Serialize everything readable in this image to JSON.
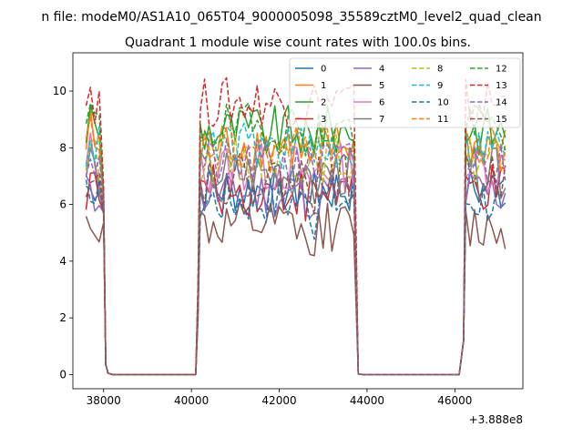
{
  "figure": {
    "suptitle": "n file: modeM0/AS1A10_065T04_9000005098_35589cztM0_level2_quad_clean",
    "title": "Quadrant 1 module wise count rates with 100.0s bins.",
    "x_offset_label": "+3.888e8"
  },
  "chart_data": {
    "type": "line",
    "title": "Quadrant 1 module wise count rates with 100.0s bins.",
    "xlabel": "",
    "ylabel": "",
    "x_offset": 388800000,
    "xlim": [
      37300,
      47550
    ],
    "ylim": [
      -0.5,
      11.35
    ],
    "xticks": [
      38000,
      40000,
      42000,
      44000,
      46000
    ],
    "yticks": [
      0,
      2,
      4,
      6,
      8,
      10
    ],
    "grid": false,
    "legend": {
      "position": "top-right",
      "columns": 4
    },
    "segments": [
      {
        "start": 37600,
        "end": 37950,
        "transition_end": 38100
      },
      {
        "start": 40150,
        "end": 43700,
        "transition_start": 40100,
        "transition_end": 43800
      },
      {
        "start": 46250,
        "end": 47200,
        "transition_start": 46100
      }
    ],
    "series": [
      {
        "name": "0",
        "color": "#1f77b4",
        "dash": "solid",
        "mean": 6.55
      },
      {
        "name": "1",
        "color": "#ff7f0e",
        "dash": "solid",
        "mean": 8.1
      },
      {
        "name": "2",
        "color": "#2ca02c",
        "dash": "solid",
        "mean": 8.6
      },
      {
        "name": "3",
        "color": "#d62728",
        "dash": "solid",
        "mean": 6.5
      },
      {
        "name": "4",
        "color": "#9467bd",
        "dash": "solid",
        "mean": 6.4
      },
      {
        "name": "5",
        "color": "#8c564b",
        "dash": "solid",
        "mean": 5.2
      },
      {
        "name": "6",
        "color": "#e377c2",
        "dash": "solid",
        "mean": 7.3
      },
      {
        "name": "7",
        "color": "#7f7f7f",
        "dash": "solid",
        "mean": 7.1
      },
      {
        "name": "8",
        "color": "#bcbd22",
        "dash": "dashed",
        "mean": 7.6
      },
      {
        "name": "9",
        "color": "#17becf",
        "dash": "dashed",
        "mean": 8.0
      },
      {
        "name": "10",
        "color": "#1f77b4",
        "dash": "dashed",
        "mean": 6.2
      },
      {
        "name": "11",
        "color": "#ff7f0e",
        "dash": "dashed",
        "mean": 7.9
      },
      {
        "name": "12",
        "color": "#2ca02c",
        "dash": "dashed",
        "mean": 8.7
      },
      {
        "name": "13",
        "color": "#d62728",
        "dash": "dashed",
        "mean": 9.6
      },
      {
        "name": "14",
        "color": "#9467bd",
        "dash": "dashed",
        "mean": 7.4
      },
      {
        "name": "15",
        "color": "#8c564b",
        "dash": "dashed",
        "mean": 6.9
      }
    ]
  }
}
